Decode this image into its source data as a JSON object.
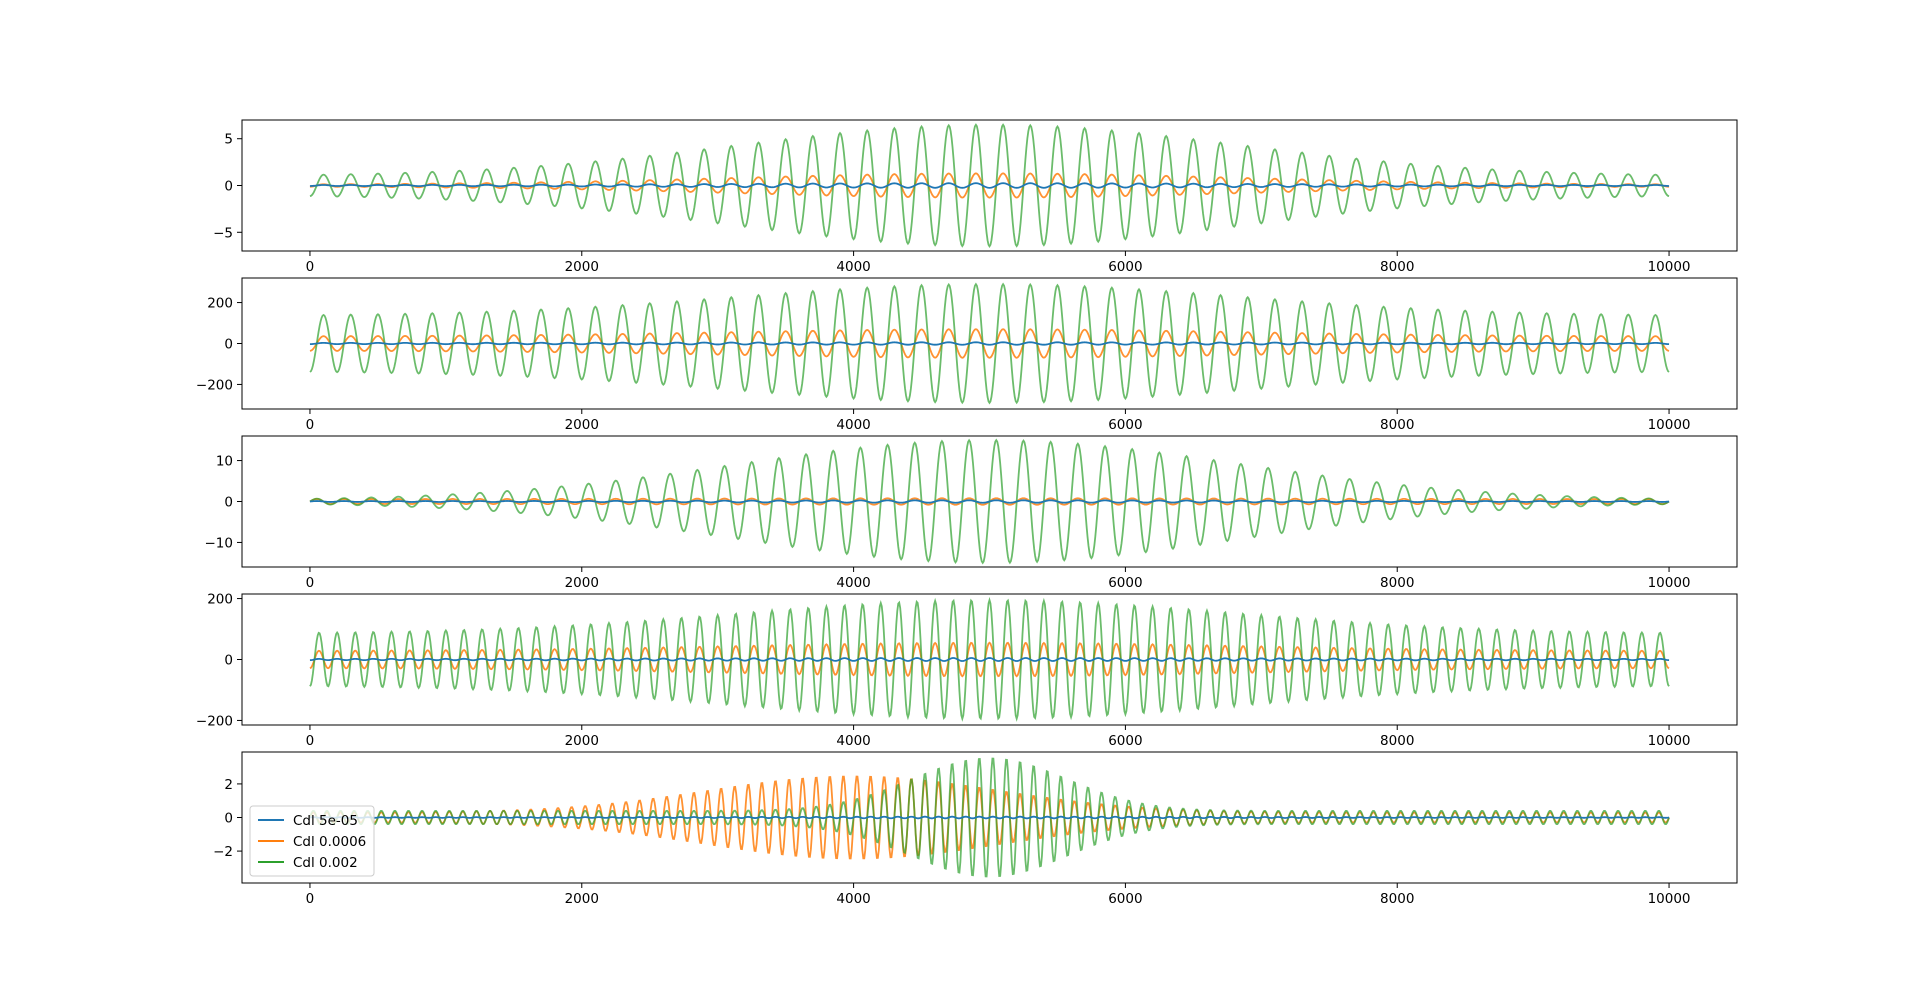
{
  "chart_data": [
    {
      "type": "line",
      "xlim": [
        -500,
        10500
      ],
      "ylim": [
        -7,
        7
      ],
      "xticks": [
        0,
        2000,
        4000,
        6000,
        8000,
        10000
      ],
      "yticks": [
        -5,
        0,
        5
      ],
      "yticklabels": [
        "−5",
        "0",
        "5"
      ],
      "cycles": 50,
      "phase": "cos",
      "envelope": "bell",
      "series": [
        {
          "name": "Cdl 5e-05",
          "color": "#1f77b4",
          "amp_center": 0.25,
          "amp_edge": 0.05
        },
        {
          "name": "Cdl 0.0006",
          "color": "#ff7f0e",
          "amp_center": 1.3,
          "amp_edge": 0.1
        },
        {
          "name": "Cdl 0.002",
          "color": "#2ca02c",
          "amp_center": 6.5,
          "amp_edge": 1.0
        }
      ]
    },
    {
      "type": "line",
      "xlim": [
        -500,
        10500
      ],
      "ylim": [
        -320,
        320
      ],
      "xticks": [
        0,
        2000,
        4000,
        6000,
        8000,
        10000
      ],
      "yticks": [
        -200,
        0,
        200
      ],
      "yticklabels": [
        "−200",
        "0",
        "200"
      ],
      "cycles": 50,
      "phase": "negcos",
      "envelope": "bell",
      "series": [
        {
          "name": "Cdl 5e-05",
          "color": "#1f77b4",
          "amp_center": 6,
          "amp_edge": 3
        },
        {
          "name": "Cdl 0.0006",
          "color": "#ff7f0e",
          "amp_center": 70,
          "amp_edge": 35
        },
        {
          "name": "Cdl 0.002",
          "color": "#2ca02c",
          "amp_center": 290,
          "amp_edge": 135
        }
      ]
    },
    {
      "type": "line",
      "xlim": [
        -500,
        10500
      ],
      "ylim": [
        -16,
        16
      ],
      "xticks": [
        0,
        2000,
        4000,
        6000,
        8000,
        10000
      ],
      "yticks": [
        -10,
        0,
        10
      ],
      "yticklabels": [
        "−10",
        "0",
        "10"
      ],
      "cycles": 50,
      "phase": "sin",
      "envelope": "bell",
      "series": [
        {
          "name": "Cdl 5e-05",
          "color": "#1f77b4",
          "amp_center": 0.3,
          "amp_edge": 0.1
        },
        {
          "name": "Cdl 0.0006",
          "color": "#ff7f0e",
          "amp_center": 0.8,
          "amp_edge": 0.6
        },
        {
          "name": "Cdl 0.002",
          "color": "#2ca02c",
          "amp_center": 15,
          "amp_edge": 0.3
        }
      ]
    },
    {
      "type": "line",
      "xlim": [
        -500,
        10500
      ],
      "ylim": [
        -215,
        215
      ],
      "xticks": [
        0,
        2000,
        4000,
        6000,
        8000,
        10000
      ],
      "yticks": [
        -200,
        0,
        200
      ],
      "yticklabels": [
        "−200",
        "0",
        "200"
      ],
      "cycles": 75,
      "phase": "cos",
      "envelope": "bell",
      "series": [
        {
          "name": "Cdl 5e-05",
          "color": "#1f77b4",
          "amp_center": 5,
          "amp_edge": 2
        },
        {
          "name": "Cdl 0.0006",
          "color": "#ff7f0e",
          "amp_center": 55,
          "amp_edge": 28
        },
        {
          "name": "Cdl 0.002",
          "color": "#2ca02c",
          "amp_center": 195,
          "amp_edge": 85
        }
      ]
    },
    {
      "type": "line",
      "xlim": [
        -500,
        10500
      ],
      "ylim": [
        -3.9,
        3.9
      ],
      "xticks": [
        0,
        2000,
        4000,
        6000,
        8000,
        10000
      ],
      "yticks": [
        -2,
        0,
        2
      ],
      "yticklabels": [
        "−2",
        "0",
        "2"
      ],
      "cycles": 100,
      "phase": "sin",
      "envelope": "bell",
      "legend": {
        "location": "lower-left",
        "labels": [
          "Cdl 5e-05",
          "Cdl 0.0006",
          "Cdl 0.002"
        ]
      },
      "series": [
        {
          "name": "Cdl 5e-05",
          "color": "#1f77b4",
          "amp_center": 0.05,
          "amp_edge": 0.02,
          "center": 5000,
          "width": 2000
        },
        {
          "name": "Cdl 0.0006",
          "color": "#ff7f0e",
          "amp_center": 2.5,
          "amp_edge": 0.3,
          "center": 4000,
          "width": 1500
        },
        {
          "name": "Cdl 0.002",
          "color": "#2ca02c",
          "amp_center": 3.6,
          "amp_edge": 0.4,
          "center": 5000,
          "width": 800
        }
      ]
    }
  ]
}
